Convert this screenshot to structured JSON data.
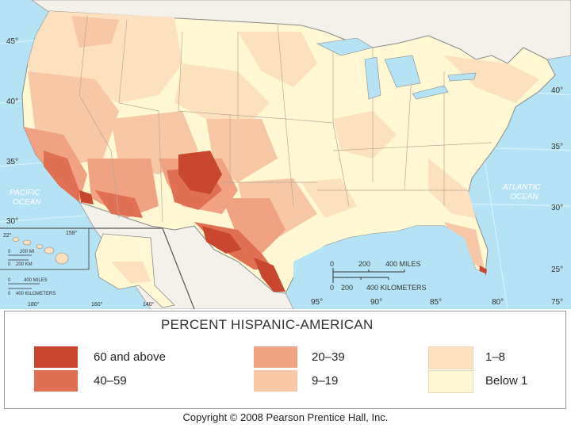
{
  "map": {
    "ocean_labels": {
      "pacific": [
        "PACIFIC",
        "OCEAN"
      ],
      "atlantic": [
        "ATLANTIC",
        "OCEAN"
      ]
    },
    "latitudes_left": [
      "45°",
      "40°",
      "35°",
      "30°"
    ],
    "latitudes_right": [
      "40°",
      "35°",
      "30°",
      "25°"
    ],
    "longitudes_bottom": [
      "95°",
      "90°",
      "85°",
      "80°",
      "75°"
    ],
    "scale_main": {
      "miles_ticks": [
        "0",
        "200",
        "400 MILES"
      ],
      "km_ticks": [
        "0",
        "200",
        "400 KILOMETERS"
      ]
    },
    "inset_hawaii": {
      "lat": "22°",
      "lon": "158°",
      "miles": [
        "0",
        "200 MI"
      ],
      "km": [
        "0",
        "200 KM"
      ]
    },
    "inset_alaska": {
      "miles": [
        "0",
        "400 MILES"
      ],
      "km": [
        "0",
        "400 KILOMETERS"
      ],
      "lons": [
        "180°",
        "160°",
        "140°"
      ]
    }
  },
  "legend": {
    "title": "PERCENT HISPANIC-AMERICAN",
    "classes": [
      {
        "label": "60 and above",
        "color": "#c8472e"
      },
      {
        "label": "40–59",
        "color": "#df7053"
      },
      {
        "label": "20–39",
        "color": "#f0a283"
      },
      {
        "label": "9–19",
        "color": "#f8c7a5"
      },
      {
        "label": "1–8",
        "color": "#fde0bd"
      },
      {
        "label": "Below 1",
        "color": "#fff8d2"
      }
    ]
  },
  "colors": {
    "water": "#b6e2f5",
    "canada": "#f4f1ea",
    "mexico": "#f4f1ea"
  },
  "copyright": "Copyright © 2008 Pearson Prentice Hall, Inc."
}
